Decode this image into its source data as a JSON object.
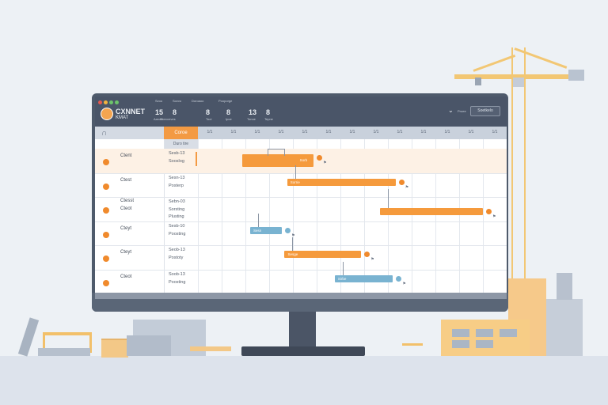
{
  "app": {
    "logo_line1": "CXNNET",
    "logo_line2": "KMAT",
    "nav": [
      "Svoo",
      "Sovvo",
      "Doroaoo",
      "Pooporge"
    ],
    "tools": [
      {
        "icon": "15",
        "label": "Aarool"
      },
      {
        "icon": "8",
        "label": "Sonvceves"
      },
      {
        "icon": "8",
        "label": "Tooi"
      },
      {
        "icon": "8",
        "label": "Ipoe"
      },
      {
        "icon": "8",
        "label": "Tepne"
      }
    ],
    "stat": {
      "value": "13",
      "label": "Tonoe"
    },
    "doc_label": "Proee",
    "search_placeholder": "Soetkelo",
    "header_tab": "Coroe",
    "subheader": "Duro tire",
    "dates": [
      "1/1",
      "1/1",
      "1/1",
      "1/1",
      "1/1",
      "1/1",
      "1/1",
      "1/1",
      "1/1",
      "1/1",
      "1/1",
      "1/1",
      "1/1"
    ]
  },
  "rows": [
    {
      "name": "Ctent",
      "date": "Sesb-13",
      "sub": "Sooslog",
      "bar": {
        "color": "orange",
        "start": 0.0,
        "end": 0.27,
        "label": "Sorb"
      }
    },
    {
      "name": "Ctest",
      "date": "Sesn-13",
      "sub": "Posterp",
      "bar": {
        "color": "orange",
        "start": 0.17,
        "end": 0.58,
        "label": "Sorrie"
      }
    },
    {
      "name": "Cteot",
      "date": "Sebn-03",
      "sub": "Sorsting",
      "extra_name": "Ctesst",
      "extra_sub": "Plusting",
      "bar": {
        "color": "orange",
        "start": 0.52,
        "end": 0.91,
        "label": ""
      }
    },
    {
      "name": "Cteyt",
      "date": "Sesb-10",
      "sub": "Poosting",
      "bar": {
        "color": "blue",
        "start": 0.03,
        "end": 0.15,
        "label": "Sesn"
      }
    },
    {
      "name": "Cteyt",
      "date": "Seob-13",
      "sub": "Postoty",
      "bar": {
        "color": "orange",
        "start": 0.16,
        "end": 0.45,
        "label": "Sesge"
      }
    },
    {
      "name": "Cteot",
      "date": "Soob-13",
      "sub": "Poosting",
      "bar": {
        "color": "blue",
        "start": 0.35,
        "end": 0.57,
        "label": "Sirbe"
      }
    }
  ],
  "colors": {
    "accent": "#f39a43",
    "blue": "#79b3d1",
    "header": "#4a5568"
  }
}
